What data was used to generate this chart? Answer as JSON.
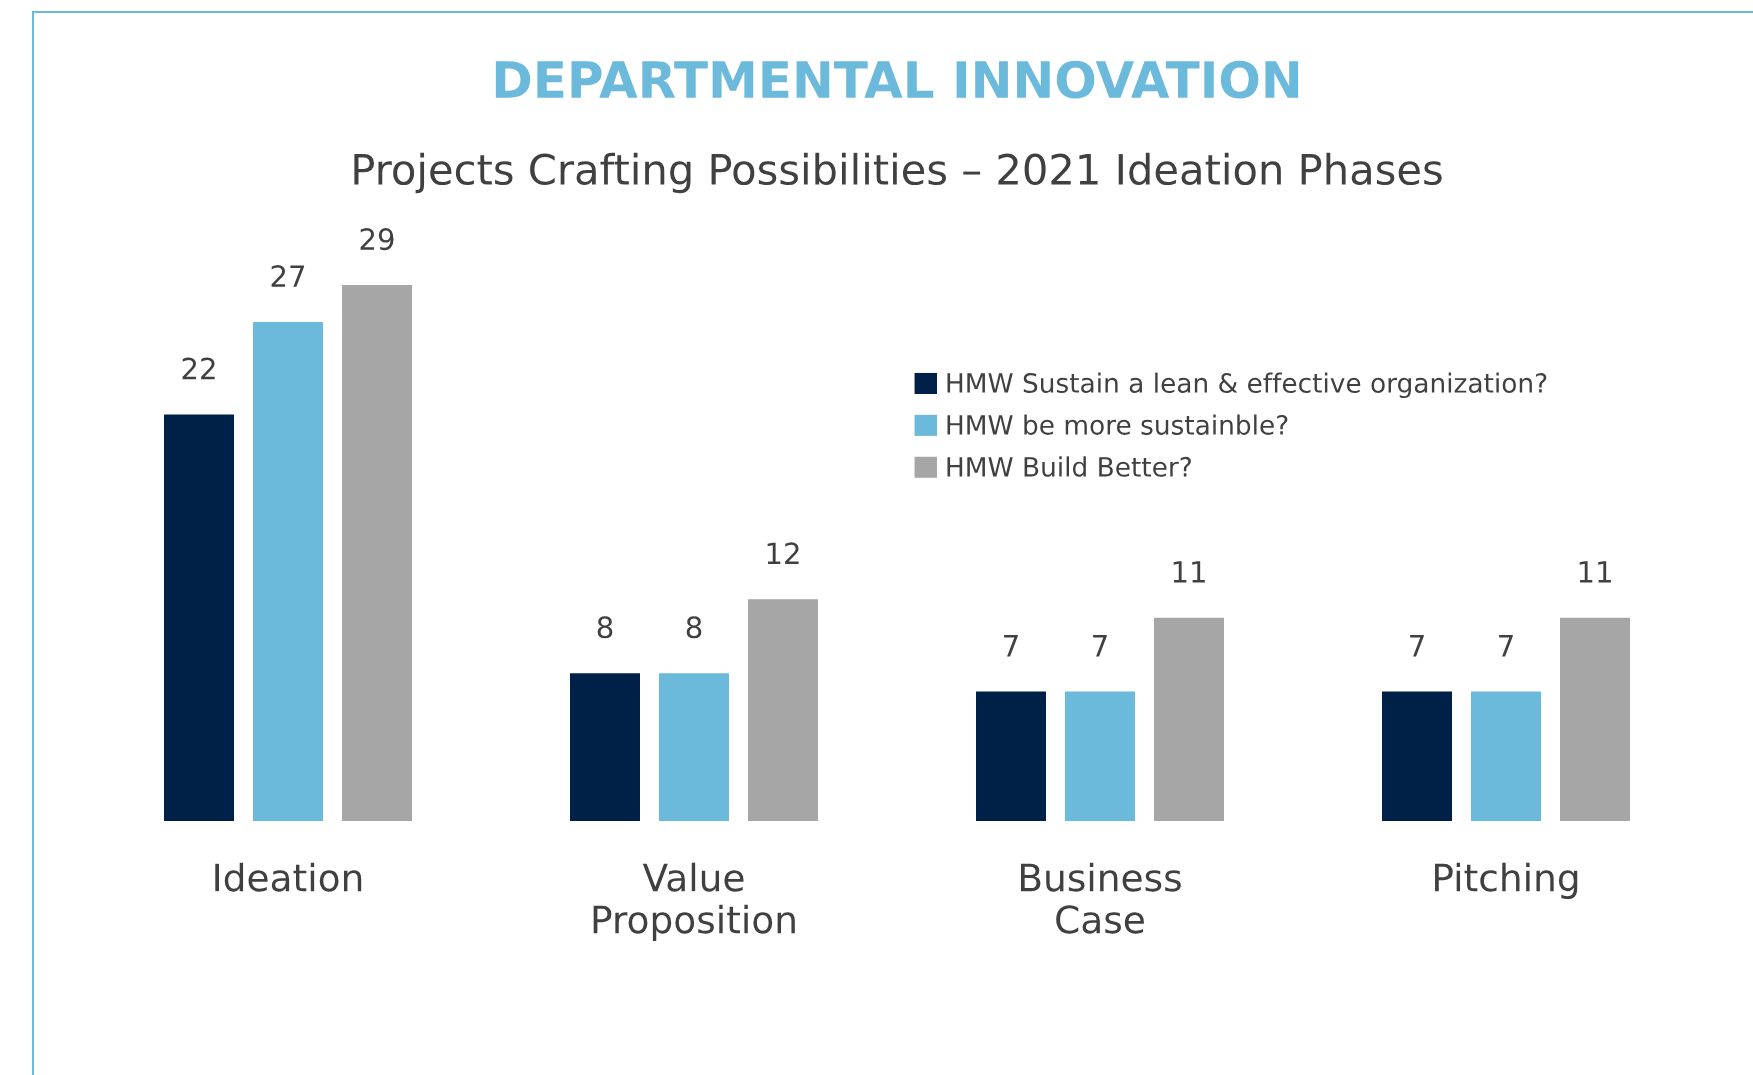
{
  "chart_data": {
    "type": "bar",
    "title": "DEPARTMENTAL INNOVATION",
    "subtitle": "Projects Crafting Possibilities – 2021 Ideation Phases",
    "categories": [
      "Ideation",
      "Value\nProposition",
      "Business\nCase",
      "Pitching"
    ],
    "series": [
      {
        "name": "HMW Sustain a lean & effective organization?",
        "color": "#002147",
        "values": [
          22,
          8,
          7,
          7
        ]
      },
      {
        "name": "HMW be more sustainble?",
        "color": "#6bb9db",
        "values": [
          27,
          8,
          7,
          7
        ]
      },
      {
        "name": "HMW Build Better?",
        "color": "#a6a6a6",
        "values": [
          29,
          12,
          11,
          11
        ]
      }
    ],
    "data_labels": true,
    "legend": "top right",
    "tick_labels": "x"
  }
}
